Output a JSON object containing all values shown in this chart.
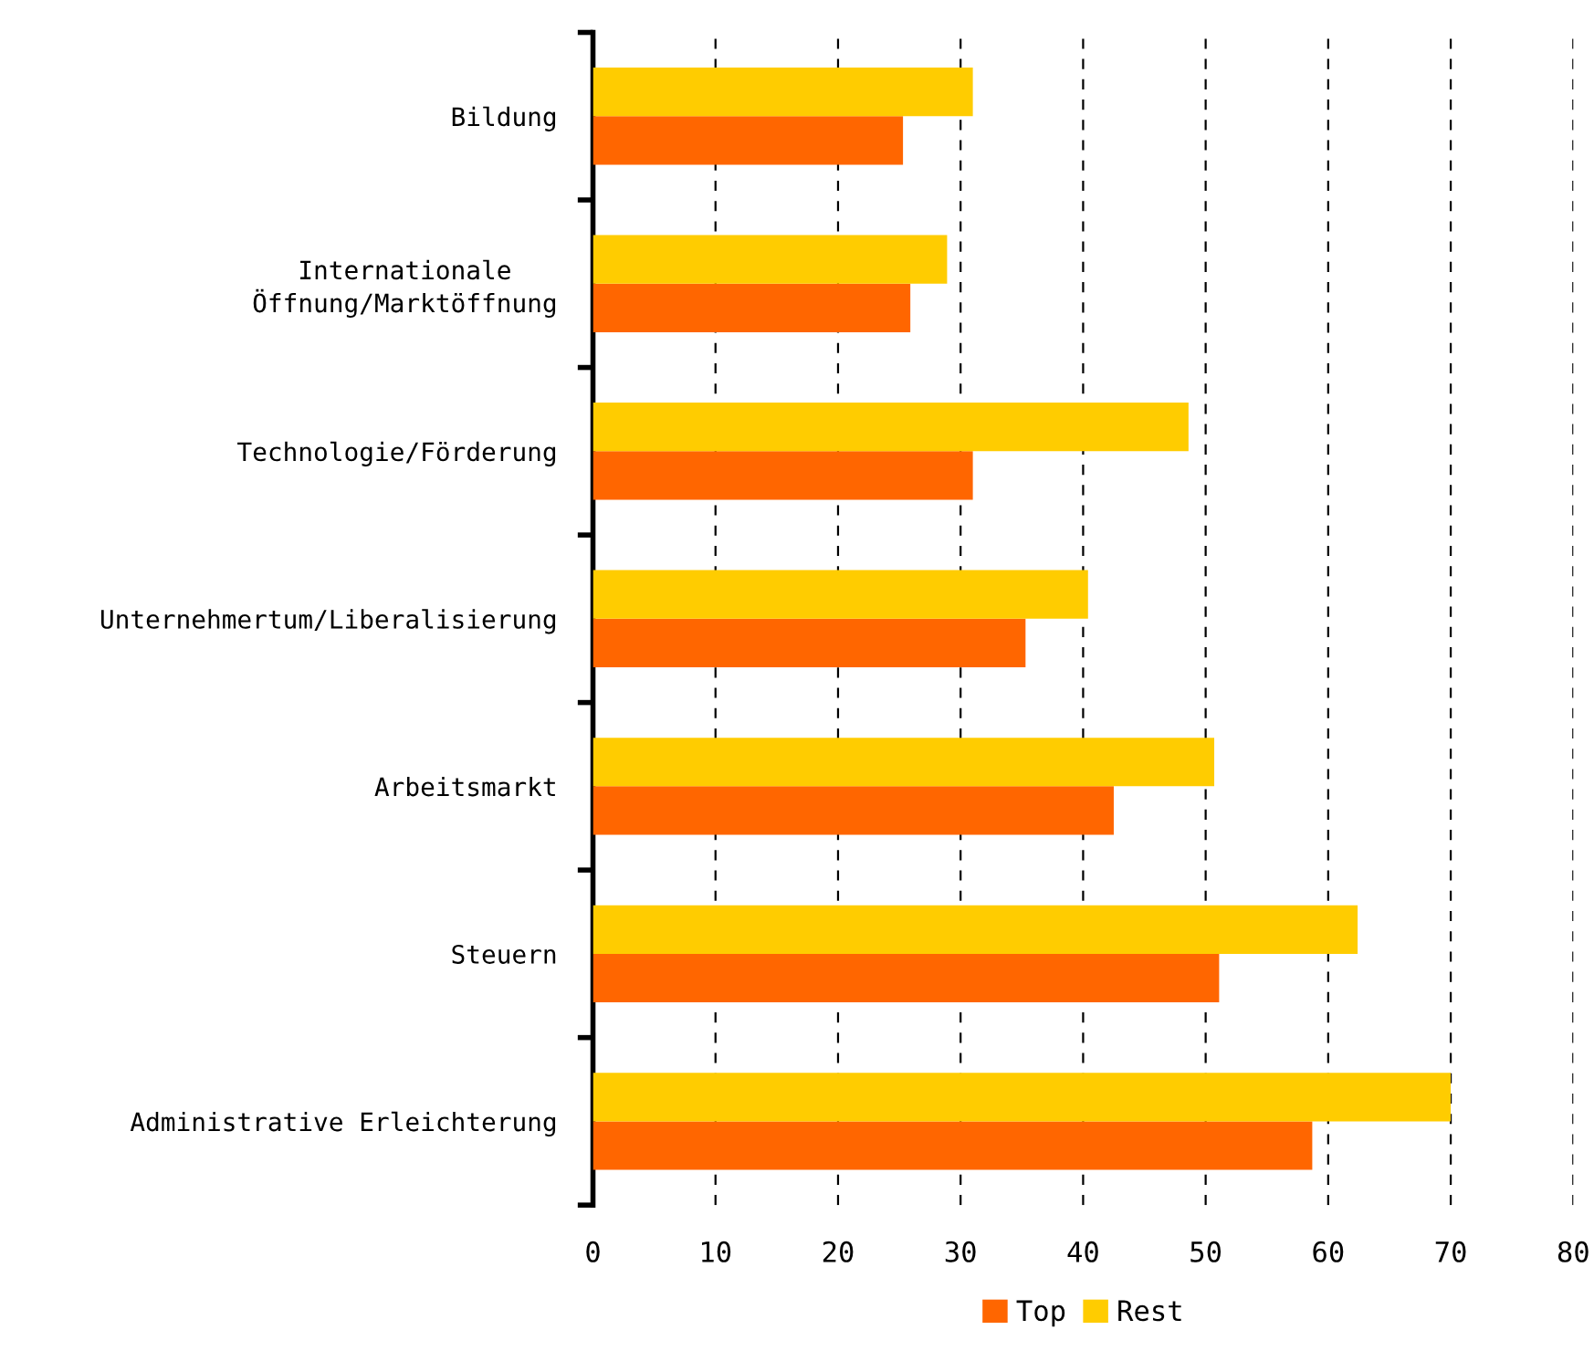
{
  "chart_data": {
    "type": "bar",
    "orientation": "horizontal",
    "categories": [
      "Bildung",
      "Internationale\nÖffnung/Marktöffnung",
      "Technologie/Förderung",
      "Unternehmertum/Liberalisierung",
      "Arbeitsmarkt",
      "Steuern",
      "Administrative Erleichterung"
    ],
    "series": [
      {
        "name": "Top",
        "color": "#ff6600",
        "values": [
          25.3,
          25.9,
          31.0,
          35.3,
          42.5,
          51.1,
          58.7
        ]
      },
      {
        "name": "Rest",
        "color": "#ffcc00",
        "values": [
          31.0,
          28.9,
          48.6,
          40.4,
          50.7,
          62.4,
          70.0
        ]
      }
    ],
    "xlim": [
      0,
      80
    ],
    "xticks": [
      0,
      10,
      20,
      30,
      40,
      50,
      60,
      70,
      80
    ],
    "grid": "x",
    "line_style": "dashed",
    "legend": "bottom"
  }
}
